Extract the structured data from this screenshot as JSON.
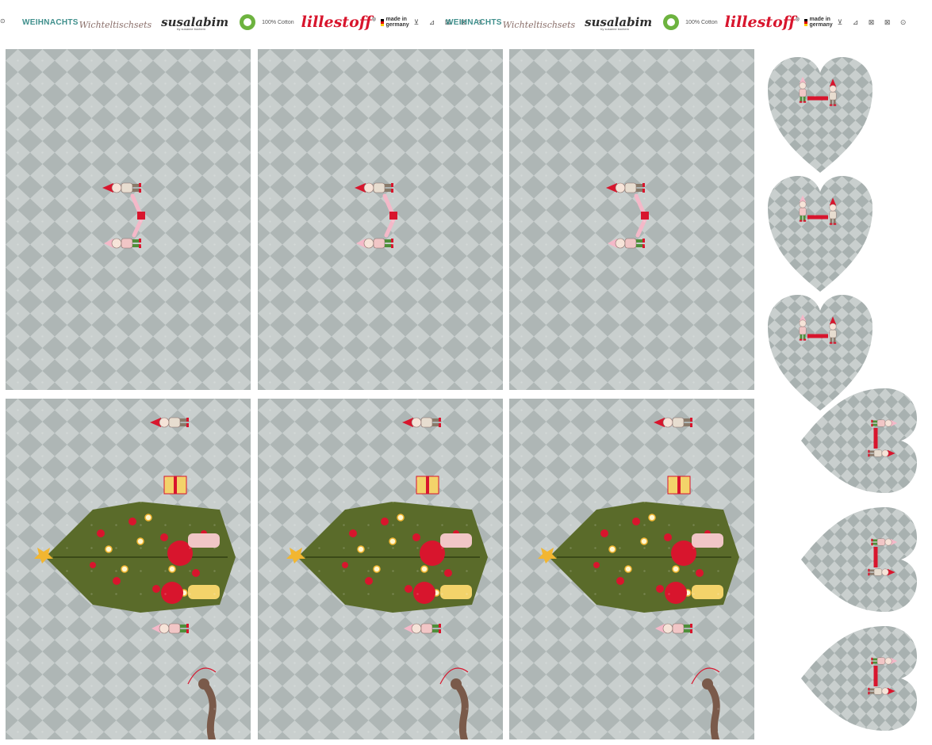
{
  "selvage": {
    "groups": [
      {
        "brand_prefix": "WEIHNACHTS",
        "brand_script": "Wichteltischsets",
        "designer": "susalabim",
        "designer_sub": "by susanne bochem",
        "cotton_label": "100% Cotton",
        "manufacturer": "lillestoff",
        "registered": "®",
        "made_in": "made in",
        "country": "germany",
        "care_icons": "⊻ ⊿ ⊠ ⊠ ⊙"
      },
      {
        "brand_prefix": "WEIHNACHTS",
        "brand_script": "Wichteltischsets",
        "designer": "susalabim",
        "designer_sub": "by susanne bochem",
        "cotton_label": "100% Cotton",
        "manufacturer": "lillestoff",
        "registered": "®",
        "made_in": "made in",
        "country": "germany",
        "care_icons": "⊻ ⊿ ⊠ ⊠ ⊙"
      }
    ],
    "edge_icon": "⊙"
  },
  "colors": {
    "fabric_bg": "#aeb6b5",
    "diamond": "#c9cfce",
    "diamond_dark": "#9aa3a2",
    "accent_red": "#d8152d",
    "brand_teal": "#3f8f8c",
    "tree_green": "#5a6b2a",
    "star_gold": "#f2b631"
  },
  "illustrations": {
    "top_panel": "two-elves-icon",
    "bottom_panel": "christmas-tree-elves-icon",
    "heart": "heart-elves-icon"
  }
}
